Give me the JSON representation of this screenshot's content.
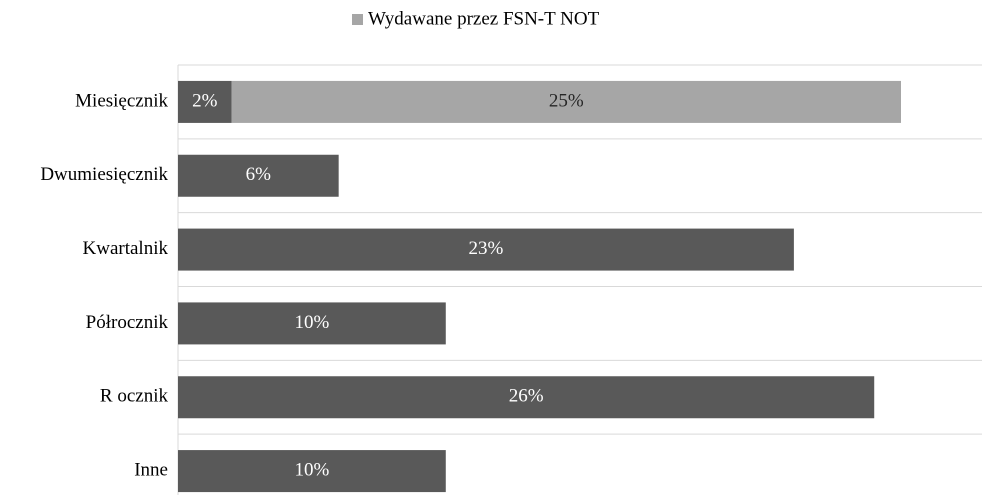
{
  "chart_data": {
    "type": "stacked-barh",
    "categories": [
      "Miesięcznik",
      "Dwumiesięcznik",
      "Kwartalnik",
      "Półrocznik",
      "R ocznik",
      "Inne"
    ],
    "series": [
      {
        "color": "#595959",
        "label_color": "#ffffff",
        "values": [
          2,
          6,
          23,
          10,
          26,
          10
        ],
        "value_labels": [
          "2%",
          "6%",
          "23%",
          "10%",
          "26%",
          "10%"
        ]
      },
      {
        "name": "Wydawane przez FSN-T NOT",
        "color": "#a6a6a6",
        "label_color": "#262626",
        "values": [
          25,
          null,
          null,
          null,
          null,
          null
        ],
        "value_labels": [
          "25%",
          null,
          null,
          null,
          null,
          null
        ]
      }
    ],
    "legend": "top",
    "grid": true
  }
}
